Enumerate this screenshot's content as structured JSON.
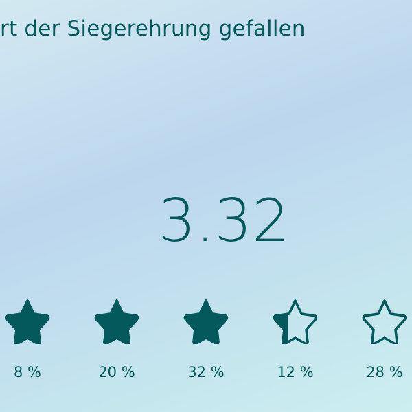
{
  "title": "rt der Siegerehrung gefallen",
  "average": "3.32",
  "accent_color": "#03595b",
  "stars": [
    {
      "icon": "star-filled-icon",
      "fill": 1,
      "percent": "8 %"
    },
    {
      "icon": "star-filled-icon",
      "fill": 1,
      "percent": "20 %"
    },
    {
      "icon": "star-filled-icon",
      "fill": 1,
      "percent": "32 %"
    },
    {
      "icon": "star-partial-icon",
      "fill": 0.32,
      "percent": "12 %"
    },
    {
      "icon": "star-outline-icon",
      "fill": 0,
      "percent": "28 %"
    }
  ]
}
